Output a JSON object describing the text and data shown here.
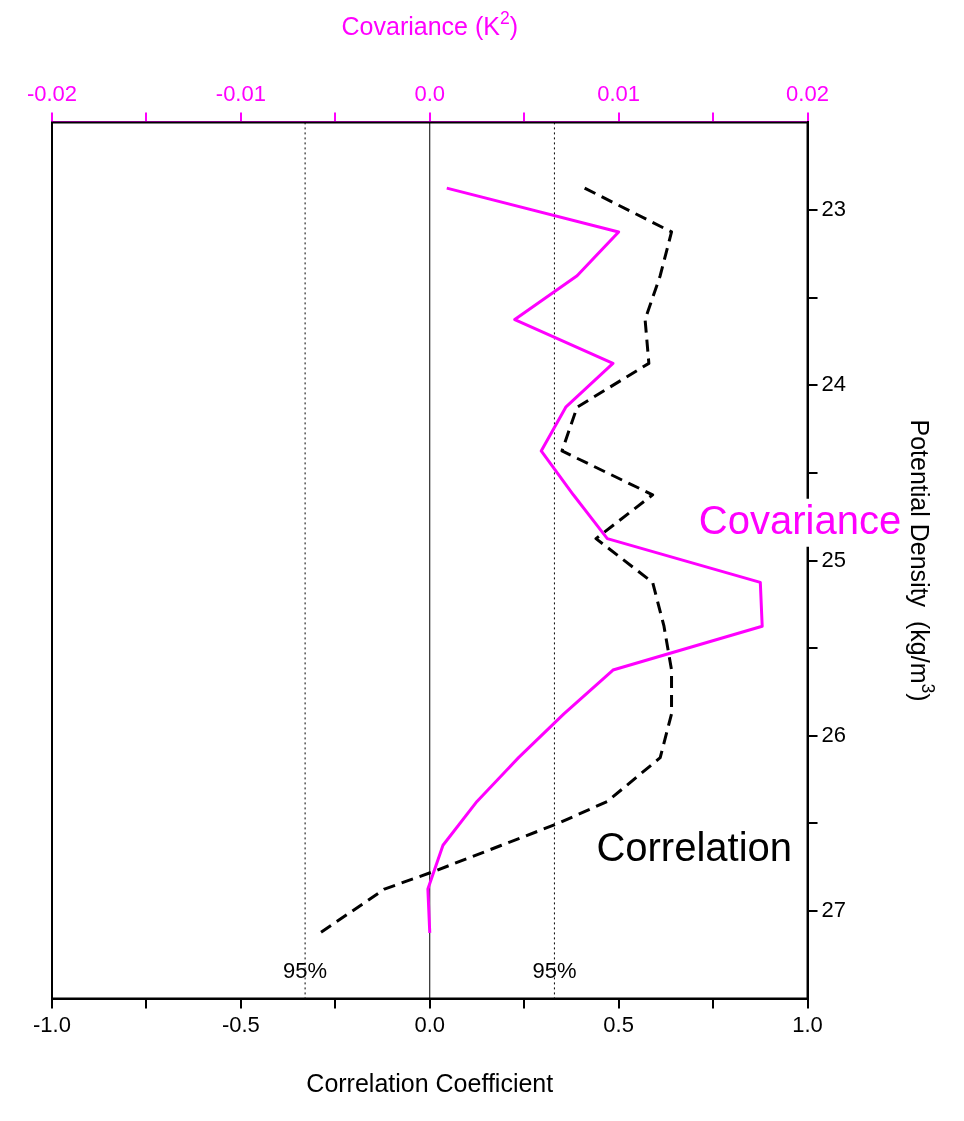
{
  "chart_data": {
    "type": "line",
    "xlabel": "Correlation Coefficient",
    "x2label": "Covariance (K$^{2}$)",
    "ylabel": "Potential Density  (kg/m$^{3}$)",
    "xlim": [
      -1,
      1
    ],
    "xticks": [
      {
        "value": -1,
        "label": "-1.0"
      },
      {
        "value": -0.75,
        "label": null
      },
      {
        "value": -0.5,
        "label": "-0.5"
      },
      {
        "value": -0.25,
        "label": null
      },
      {
        "value": 0,
        "label": "0.0"
      },
      {
        "value": 0.25,
        "label": null
      },
      {
        "value": 0.5,
        "label": "0.5"
      },
      {
        "value": 0.75,
        "label": null
      },
      {
        "value": 1,
        "label": "1.0"
      }
    ],
    "x2lim": [
      -0.02,
      0.02
    ],
    "x2ticks": [
      -0.02,
      {
        "value": -0.015,
        "label": null
      },
      -0.01,
      {
        "value": -0.005,
        "label": null
      },
      {
        "value": 0,
        "label": "0.0"
      },
      {
        "value": 0.005,
        "label": null
      },
      0.01,
      {
        "value": 0.015,
        "label": null
      },
      0.02
    ],
    "ylim": [
      27.5,
      22.5
    ],
    "yticks": [
      23,
      {
        "value": 23.5,
        "label": null
      },
      24,
      {
        "value": 24.5,
        "label": null
      },
      25,
      {
        "value": 25.5,
        "label": null
      },
      26,
      {
        "value": 26.5,
        "label": null
      },
      27
    ],
    "annotations": [
      {
        "text": "95%",
        "x": -0.33,
        "y": 27.35
      },
      {
        "text": "95%",
        "x": 0.33,
        "y": 27.35
      }
    ],
    "grid": false,
    "marker": "none",
    "ref_lines": [
      {
        "axis": "x",
        "value": -0.33,
        "line_style": "dotted"
      },
      {
        "axis": "x",
        "value": 0.33,
        "line_style": "dotted"
      },
      {
        "axis": "x",
        "value": 0,
        "line_style": "solid"
      }
    ],
    "series": [
      {
        "name": "Correlation",
        "color": "#000000",
        "line_style": "dashed",
        "x": [
          0.41,
          0.64,
          0.61,
          0.57,
          0.58,
          0.39,
          0.35,
          0.59,
          0.44,
          0.59,
          0.62,
          0.64,
          0.64,
          0.61,
          0.47,
          0.34,
          0.19,
          0.01,
          -0.12,
          -0.29
        ],
        "values": [
          22.875,
          23.125,
          23.375,
          23.625,
          23.875,
          24.125,
          24.375,
          24.625,
          24.875,
          25.125,
          25.375,
          25.625,
          25.875,
          26.125,
          26.375,
          26.5,
          26.625,
          26.775,
          26.875,
          27.125
        ]
      },
      {
        "name": "Covariance",
        "color": "#ff00ff",
        "line_style": "solid",
        "axis": "x2",
        "x": [
          0.0009,
          0.01,
          0.0078,
          0.0045,
          0.0097,
          0.0072,
          0.0059,
          0.0076,
          0.0094,
          0.0175,
          0.0176,
          0.0097,
          0.0071,
          0.0047,
          0.0025,
          0.0007,
          -0.0001,
          0
        ],
        "values": [
          22.875,
          23.125,
          23.375,
          23.625,
          23.875,
          24.125,
          24.375,
          24.625,
          24.875,
          25.125,
          25.375,
          25.625,
          25.875,
          26.125,
          26.375,
          26.625,
          26.875,
          27.125
        ]
      }
    ]
  }
}
